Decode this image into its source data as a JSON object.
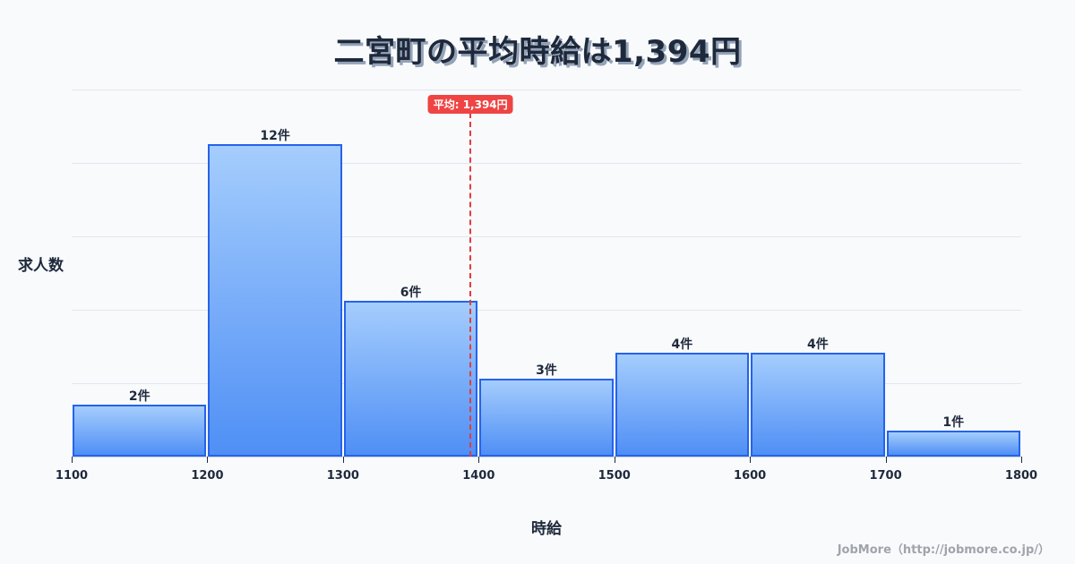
{
  "title": "二宮町の平均時給は1,394円",
  "average_badge": "平均: 1,394円",
  "y_axis_label": "求人数",
  "x_axis_label": "時給",
  "footer": "JobMore（http://jobmore.co.jp/）",
  "colors": {
    "bar_fill_top": "#a5cdfd",
    "bar_fill_bottom": "#4f8ff5",
    "bar_border": "#2563eb",
    "average_line": "#e23d3d",
    "average_badge_bg": "#ef4444",
    "text": "#1e293b",
    "background": "#f8fafc"
  },
  "bar_labels": [
    "2件",
    "12件",
    "6件",
    "3件",
    "4件",
    "4件",
    "1件"
  ],
  "tick_labels": [
    "1100",
    "1200",
    "1300",
    "1400",
    "1500",
    "1600",
    "1700",
    "1800"
  ],
  "chart_data": {
    "type": "bar",
    "subtype": "histogram",
    "title": "二宮町の平均時給は1,394円",
    "xlabel": "時給",
    "ylabel": "求人数",
    "bins": [
      [
        1100,
        1200
      ],
      [
        1200,
        1300
      ],
      [
        1300,
        1400
      ],
      [
        1400,
        1500
      ],
      [
        1500,
        1600
      ],
      [
        1600,
        1700
      ],
      [
        1700,
        1800
      ]
    ],
    "categories": [
      "1100-1200",
      "1200-1300",
      "1300-1400",
      "1400-1500",
      "1500-1600",
      "1600-1700",
      "1700-1800"
    ],
    "values": [
      2,
      12,
      6,
      3,
      4,
      4,
      1
    ],
    "data_labels": [
      "2件",
      "12件",
      "6件",
      "3件",
      "4件",
      "4件",
      "1件"
    ],
    "xticks": [
      1100,
      1200,
      1300,
      1400,
      1500,
      1600,
      1700,
      1800
    ],
    "xlim": [
      1100,
      1800
    ],
    "ylim": [
      0,
      14.1
    ],
    "grid": true,
    "y_tick_labels_shown": false,
    "annotations": [
      {
        "type": "vline",
        "x": 1394,
        "style": "dashed",
        "color": "#e23d3d",
        "label": "平均: 1,394円"
      }
    ],
    "legend": null
  }
}
